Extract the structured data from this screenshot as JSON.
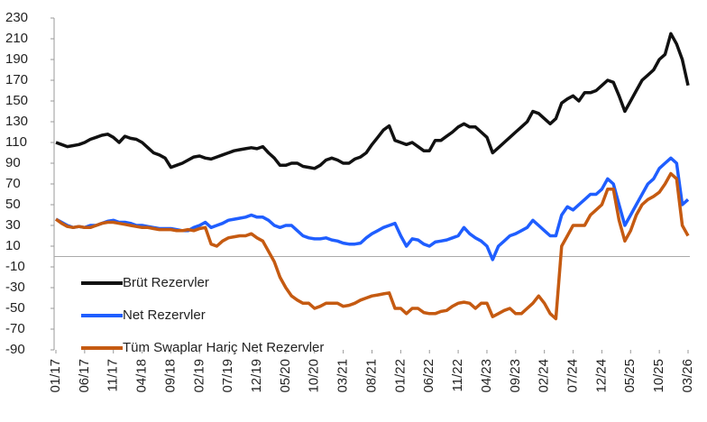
{
  "chart_data": {
    "type": "line",
    "categories": [
      "01/17",
      null,
      null,
      null,
      null,
      "06/17",
      null,
      null,
      null,
      null,
      "11/17",
      null,
      null,
      null,
      null,
      "04/18",
      null,
      null,
      null,
      null,
      "09/18",
      null,
      null,
      null,
      null,
      "02/19",
      null,
      null,
      null,
      null,
      "07/19",
      null,
      null,
      null,
      null,
      "12/19",
      null,
      null,
      null,
      null,
      "05/20",
      null,
      null,
      null,
      null,
      "10/20",
      null,
      null,
      null,
      null,
      "03/21",
      null,
      null,
      null,
      null,
      "08/21",
      null,
      null,
      null,
      null,
      "01/22",
      null,
      null,
      null,
      null,
      "06/22",
      null,
      null,
      null,
      null,
      "11/22",
      null,
      null,
      null,
      null,
      "04/23",
      null,
      null,
      null,
      null,
      "09/23",
      null,
      null,
      null,
      null,
      "02/24",
      null,
      null,
      null,
      null,
      "07/24",
      null,
      null,
      null,
      null,
      "12/24",
      null,
      null,
      null,
      null,
      "05/25",
      null,
      null,
      null,
      null,
      "10/25",
      null,
      null,
      null,
      null,
      "03/26"
    ],
    "series": [
      {
        "name": "Brüt Rezervler",
        "color": "#111111",
        "values": [
          110,
          108,
          106,
          107,
          108,
          110,
          113,
          115,
          117,
          118,
          115,
          110,
          116,
          114,
          113,
          110,
          105,
          100,
          98,
          95,
          86,
          88,
          90,
          93,
          96,
          97,
          95,
          94,
          96,
          98,
          100,
          102,
          103,
          104,
          105,
          104,
          106,
          100,
          95,
          88,
          88,
          90,
          90,
          87,
          86,
          85,
          88,
          93,
          95,
          93,
          90,
          90,
          94,
          96,
          100,
          108,
          115,
          122,
          126,
          112,
          110,
          108,
          110,
          106,
          102,
          102,
          112,
          112,
          116,
          120,
          125,
          128,
          125,
          125,
          120,
          115,
          100,
          105,
          110,
          115,
          120,
          125,
          130,
          140,
          138,
          133,
          128,
          133,
          148,
          152,
          155,
          150,
          158,
          158,
          160,
          165,
          170,
          168,
          155,
          140,
          150,
          160,
          170,
          175,
          180,
          190,
          195,
          215,
          205,
          190,
          165
        ]
      },
      {
        "name": "Net Rezervler",
        "color": "#1f5eff",
        "values": [
          36,
          33,
          30,
          28,
          29,
          28,
          30,
          30,
          32,
          34,
          35,
          33,
          33,
          32,
          30,
          30,
          29,
          28,
          27,
          27,
          27,
          26,
          25,
          25,
          28,
          30,
          33,
          28,
          30,
          32,
          35,
          36,
          37,
          38,
          40,
          38,
          38,
          35,
          30,
          28,
          30,
          30,
          25,
          20,
          18,
          17,
          17,
          18,
          16,
          15,
          13,
          12,
          12,
          13,
          18,
          22,
          25,
          28,
          30,
          32,
          20,
          10,
          17,
          16,
          12,
          10,
          14,
          15,
          16,
          18,
          20,
          28,
          22,
          18,
          15,
          10,
          -3,
          10,
          15,
          20,
          22,
          25,
          28,
          35,
          30,
          25,
          20,
          20,
          40,
          48,
          45,
          50,
          55,
          60,
          60,
          65,
          75,
          70,
          50,
          30,
          40,
          50,
          60,
          70,
          75,
          85,
          90,
          95,
          90,
          50,
          55
        ]
      },
      {
        "name": "Tüm Swaplar Hariç Net Rezervler",
        "color": "#c55a11",
        "values": [
          36,
          32,
          29,
          28,
          29,
          28,
          28,
          30,
          32,
          33,
          33,
          32,
          31,
          30,
          29,
          28,
          28,
          27,
          26,
          26,
          26,
          25,
          25,
          26,
          25,
          27,
          28,
          12,
          10,
          15,
          18,
          19,
          20,
          20,
          22,
          18,
          15,
          5,
          -5,
          -20,
          -30,
          -38,
          -42,
          -45,
          -45,
          -50,
          -48,
          -45,
          -45,
          -45,
          -48,
          -47,
          -45,
          -42,
          -40,
          -38,
          -37,
          -36,
          -35,
          -50,
          -50,
          -55,
          -50,
          -50,
          -54,
          -55,
          -55,
          -53,
          -52,
          -48,
          -45,
          -44,
          -45,
          -50,
          -45,
          -45,
          -58,
          -55,
          -52,
          -50,
          -55,
          -55,
          -50,
          -45,
          -38,
          -45,
          -55,
          -60,
          10,
          20,
          30,
          30,
          30,
          40,
          45,
          50,
          65,
          65,
          35,
          15,
          25,
          40,
          50,
          55,
          58,
          62,
          70,
          80,
          75,
          30,
          20
        ]
      }
    ],
    "ylim": [
      -90,
      230
    ],
    "yticks": [
      -90,
      -70,
      -50,
      -30,
      -10,
      10,
      30,
      50,
      70,
      90,
      110,
      130,
      150,
      170,
      190,
      210,
      230
    ],
    "legend": "center-left"
  }
}
